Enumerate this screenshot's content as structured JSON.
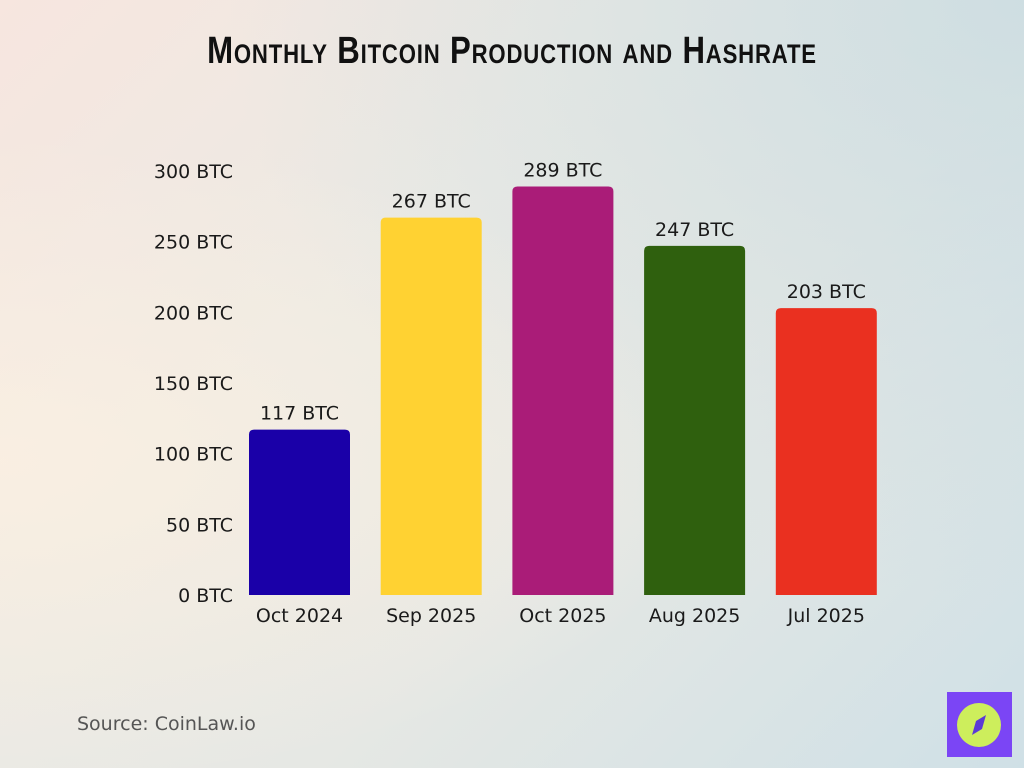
{
  "chart_data": {
    "type": "bar",
    "title": "Monthly Bitcoin Production and Hashrate",
    "categories": [
      "Oct 2024",
      "Sep 2025",
      "Oct 2025",
      "Aug 2025",
      "Jul 2025"
    ],
    "values": [
      117,
      267,
      289,
      247,
      203
    ],
    "data_labels": [
      "117 BTC",
      "267 BTC",
      "289 BTC",
      "247 BTC",
      "203 BTC"
    ],
    "colors": [
      "#1a00a8",
      "#ffd232",
      "#aa1c78",
      "#2f600e",
      "#ea3020"
    ],
    "ylim": [
      0,
      300
    ],
    "yticks": [
      0,
      50,
      100,
      150,
      200,
      250,
      300
    ],
    "ytick_labels": [
      "0 BTC",
      "50 BTC",
      "100 BTC",
      "150 BTC",
      "200 BTC",
      "250 BTC",
      "300 BTC"
    ],
    "xlabel": "",
    "ylabel": "",
    "grid": false,
    "legend": "none"
  },
  "source": "Source: CoinLaw.io",
  "logo": {
    "icon": "compass-icon",
    "bg": "#7b45f5",
    "fg": "#cdee5c"
  }
}
